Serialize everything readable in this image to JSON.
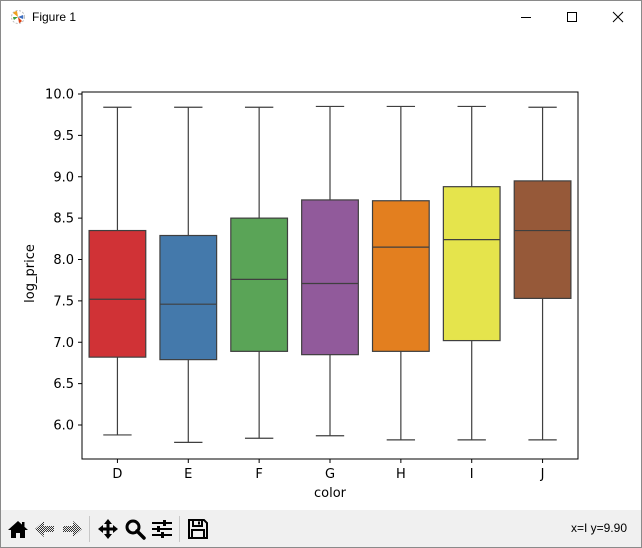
{
  "window": {
    "title": "Figure 1",
    "controls": [
      "minimize",
      "maximize",
      "close"
    ]
  },
  "toolbar": {
    "buttons": [
      {
        "name": "home",
        "icon": "home-icon"
      },
      {
        "name": "back",
        "icon": "arrow-left-icon"
      },
      {
        "name": "forward",
        "icon": "arrow-right-icon"
      },
      {
        "name": "pan",
        "icon": "move-icon"
      },
      {
        "name": "zoom",
        "icon": "magnifier-icon"
      },
      {
        "name": "configure-subplots",
        "icon": "sliders-icon"
      },
      {
        "name": "save",
        "icon": "floppy-disk-icon"
      }
    ],
    "status": "x=I y=9.90"
  },
  "chart_data": {
    "type": "box",
    "title": "",
    "xlabel": "color",
    "ylabel": "log_price",
    "categories": [
      "D",
      "E",
      "F",
      "G",
      "H",
      "I",
      "J"
    ],
    "ylim": [
      5.58,
      10.05
    ],
    "yticks": [
      6.0,
      6.5,
      7.0,
      7.5,
      8.0,
      8.5,
      9.0,
      9.5,
      10.0
    ],
    "ytick_labels": [
      "6.0",
      "6.5",
      "7.0",
      "7.5",
      "8.0",
      "8.5",
      "9.0",
      "9.5",
      "10.0"
    ],
    "grid": false,
    "legend": null,
    "series": [
      {
        "name": "D",
        "color": "#d03236",
        "whisker_low": 5.88,
        "q1": 6.82,
        "median": 7.52,
        "q3": 8.35,
        "whisker_high": 9.84
      },
      {
        "name": "E",
        "color": "#4479ab",
        "whisker_low": 5.79,
        "q1": 6.79,
        "median": 7.46,
        "q3": 8.29,
        "whisker_high": 9.84
      },
      {
        "name": "F",
        "color": "#5aa457",
        "whisker_low": 5.84,
        "q1": 6.89,
        "median": 7.76,
        "q3": 8.5,
        "whisker_high": 9.84
      },
      {
        "name": "G",
        "color": "#915a9b",
        "whisker_low": 5.87,
        "q1": 6.85,
        "median": 7.71,
        "q3": 8.72,
        "whisker_high": 9.85
      },
      {
        "name": "H",
        "color": "#e37f1f",
        "whisker_low": 5.82,
        "q1": 6.89,
        "median": 8.15,
        "q3": 8.71,
        "whisker_high": 9.85
      },
      {
        "name": "I",
        "color": "#e5e44c",
        "whisker_low": 5.82,
        "q1": 7.02,
        "median": 8.24,
        "q3": 8.88,
        "whisker_high": 9.85
      },
      {
        "name": "J",
        "color": "#965939",
        "whisker_low": 5.82,
        "q1": 7.53,
        "median": 8.35,
        "q3": 8.95,
        "whisker_high": 9.84
      }
    ]
  }
}
